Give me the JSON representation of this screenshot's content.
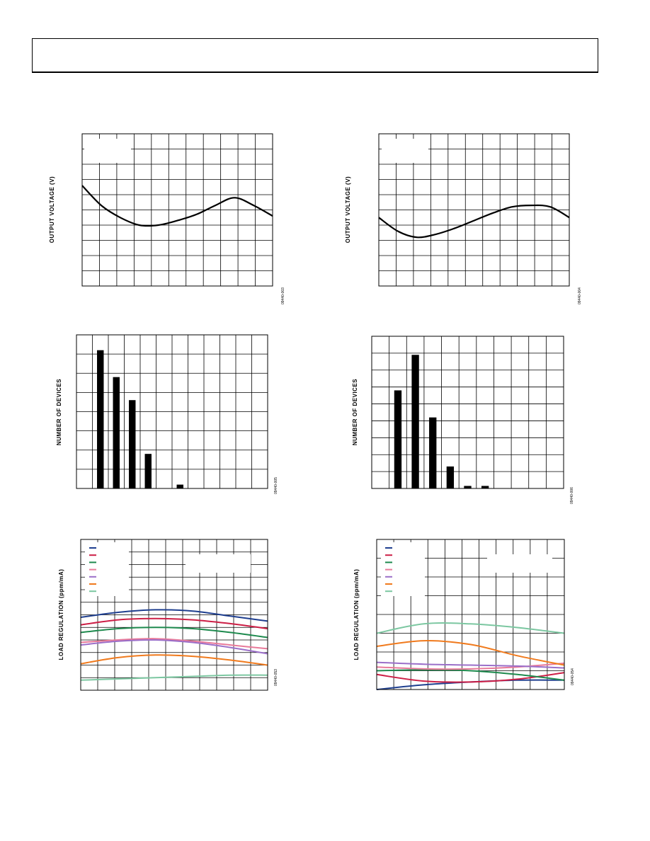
{
  "chart_data": [
    {
      "type": "line",
      "ylabel": "OUTPUT VOLTAGE (V)",
      "figure_id": "09440-003",
      "grid": true,
      "x_divisions": 11,
      "y_divisions": 10,
      "series": [
        {
          "values": [
            6.6,
            5.3,
            4.5,
            4.0,
            4.0,
            4.3,
            4.7,
            5.3,
            5.8,
            5.3,
            4.6
          ]
        }
      ]
    },
    {
      "type": "line",
      "ylabel": "OUTPUT VOLTAGE (V)",
      "figure_id": "09440-004",
      "grid": true,
      "x_divisions": 11,
      "y_divisions": 10,
      "series": [
        {
          "values": [
            4.5,
            3.6,
            3.2,
            3.4,
            3.8,
            4.3,
            4.8,
            5.2,
            5.3,
            5.2,
            4.5
          ]
        }
      ]
    },
    {
      "type": "bar",
      "ylabel": "NUMBER OF DEVICES",
      "figure_id": "09440-005",
      "grid": true,
      "x_divisions": 12,
      "y_divisions": 8,
      "values": [
        0,
        7.2,
        5.8,
        4.6,
        1.8,
        0,
        0.2,
        0,
        0,
        0,
        0,
        0
      ]
    },
    {
      "type": "bar",
      "ylabel": "NUMBER OF DEVICES",
      "figure_id": "09440-006",
      "grid": true,
      "x_divisions": 11,
      "y_divisions": 9,
      "values": [
        0,
        5.8,
        7.9,
        4.2,
        1.3,
        0.15,
        0.15,
        0,
        0,
        0,
        0
      ]
    },
    {
      "type": "line",
      "ylabel": "LOAD REGULATION (ppm/mA)",
      "figure_id": "09440-053",
      "grid": true,
      "x_divisions": 11,
      "y_divisions": 12,
      "series": [
        {
          "color": "#1f3f8f",
          "values": [
            5.8,
            6.2,
            6.4,
            6.3,
            5.9,
            5.5
          ]
        },
        {
          "color": "#cc1f46",
          "values": [
            5.2,
            5.6,
            5.7,
            5.6,
            5.3,
            4.9
          ]
        },
        {
          "color": "#1e8a4e",
          "values": [
            4.6,
            4.9,
            5.0,
            4.9,
            4.6,
            4.2
          ]
        },
        {
          "color": "#e87a9a",
          "values": [
            3.8,
            4.0,
            4.1,
            3.9,
            3.6,
            3.3
          ]
        },
        {
          "color": "#9b6fc9",
          "values": [
            3.6,
            3.9,
            4.0,
            3.8,
            3.4,
            2.9
          ]
        },
        {
          "color": "#f07a1d",
          "values": [
            2.1,
            2.6,
            2.8,
            2.7,
            2.4,
            2.0
          ]
        },
        {
          "color": "#7cc7a1",
          "values": [
            0.8,
            0.9,
            1.0,
            1.1,
            1.2,
            1.2
          ]
        }
      ]
    },
    {
      "type": "line",
      "ylabel": "LOAD REGULATION (ppm/mA)",
      "figure_id": "09440-054",
      "grid": true,
      "x_divisions": 11,
      "y_divisions": 8,
      "series": [
        {
          "color": "#1f3f8f",
          "values": [
            0.0,
            0.25,
            0.4,
            0.5,
            0.5
          ]
        },
        {
          "color": "#cc1f46",
          "values": [
            0.8,
            0.45,
            0.4,
            0.55,
            0.9
          ]
        },
        {
          "color": "#1e8a4e",
          "values": [
            1.0,
            1.05,
            1.0,
            0.8,
            0.5
          ]
        },
        {
          "color": "#e87a9a",
          "values": [
            1.2,
            1.1,
            1.1,
            1.2,
            1.4
          ]
        },
        {
          "color": "#9b6fc9",
          "values": [
            1.45,
            1.35,
            1.3,
            1.25,
            1.15
          ]
        },
        {
          "color": "#f07a1d",
          "values": [
            2.3,
            2.6,
            2.4,
            1.8,
            1.3
          ]
        },
        {
          "color": "#7cc7a1",
          "values": [
            3.0,
            3.5,
            3.5,
            3.3,
            3.0
          ]
        }
      ]
    }
  ]
}
